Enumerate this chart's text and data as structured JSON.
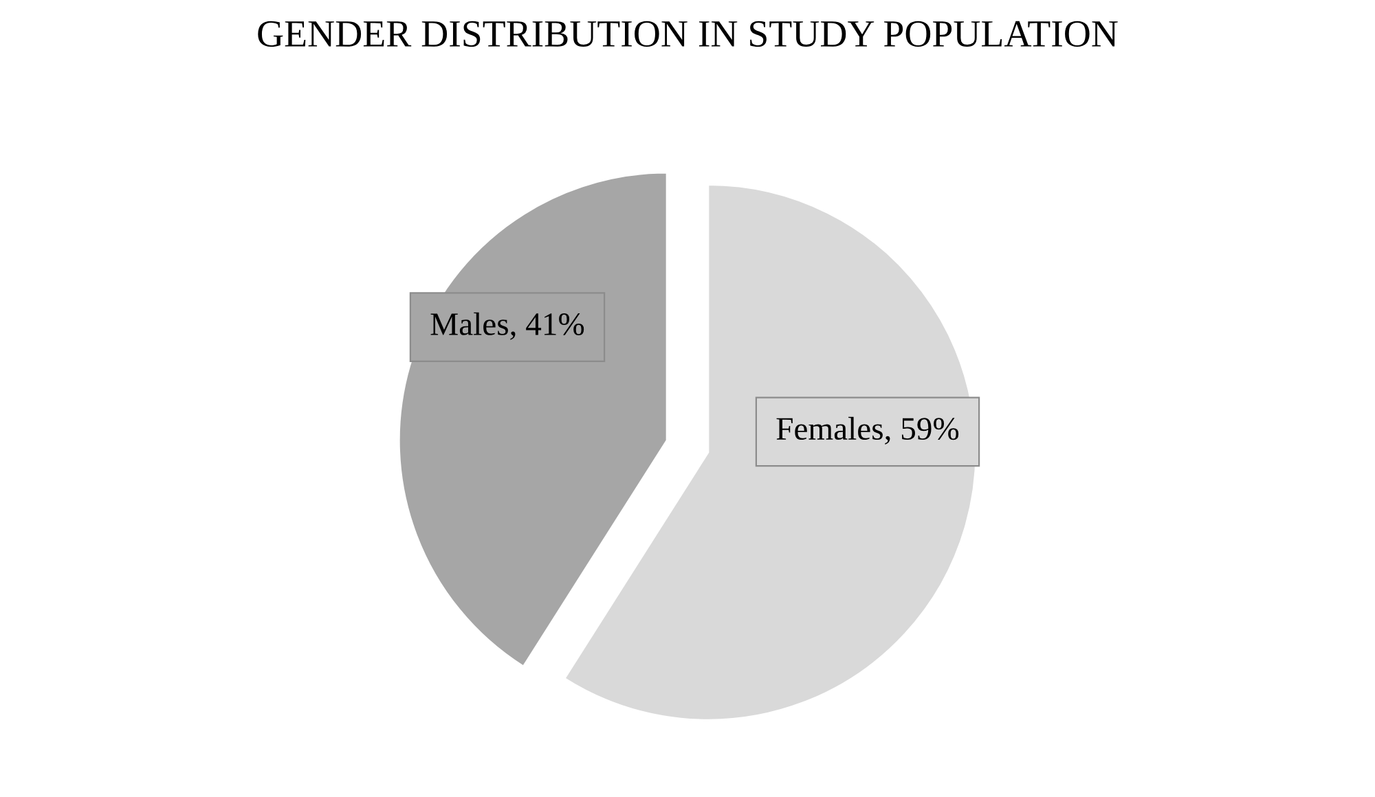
{
  "chart_data": {
    "type": "pie",
    "title": "GENDER DISTRIBUTION IN STUDY POPULATION",
    "categories": [
      "Males",
      "Females"
    ],
    "values": [
      41,
      59
    ],
    "colors": [
      "#a6a6a6",
      "#d9d9d9"
    ],
    "value_labels": [
      "41%",
      "59%"
    ],
    "legend": false
  }
}
